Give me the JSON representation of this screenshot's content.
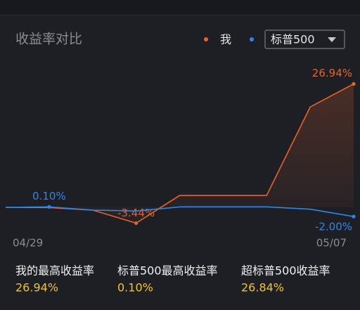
{
  "header": {
    "title": "收益率对比",
    "dropdown": "标普500"
  },
  "chart_data": {
    "type": "line",
    "categories": [
      "04/29",
      null,
      null,
      null,
      null,
      null,
      null,
      null,
      "05/07"
    ],
    "series": [
      {
        "name": "我",
        "color": "#e8622a",
        "values": [
          0,
          -0.05,
          -0.6,
          -3.44,
          2.6,
          2.6,
          2.6,
          21.9,
          26.94
        ],
        "value_labels": [
          null,
          null,
          null,
          "-3.44%",
          null,
          null,
          null,
          null,
          "26.94%"
        ]
      },
      {
        "name": "标普500",
        "color": "#2f86e8",
        "values": [
          0,
          0.1,
          -0.6,
          -0.8,
          0.1,
          0.1,
          0.1,
          -0.4,
          -2.0
        ],
        "value_labels": [
          null,
          "0.10%",
          null,
          null,
          null,
          null,
          null,
          null,
          "-2.00%"
        ]
      }
    ],
    "ylim": [
      -5,
      30
    ]
  },
  "stats": [
    {
      "label": "我的最高收益率",
      "value": "26.94%"
    },
    {
      "label": "标普500最高收益率",
      "value": "0.10%"
    },
    {
      "label": "超标普500收益率",
      "value": "26.84%"
    }
  ]
}
